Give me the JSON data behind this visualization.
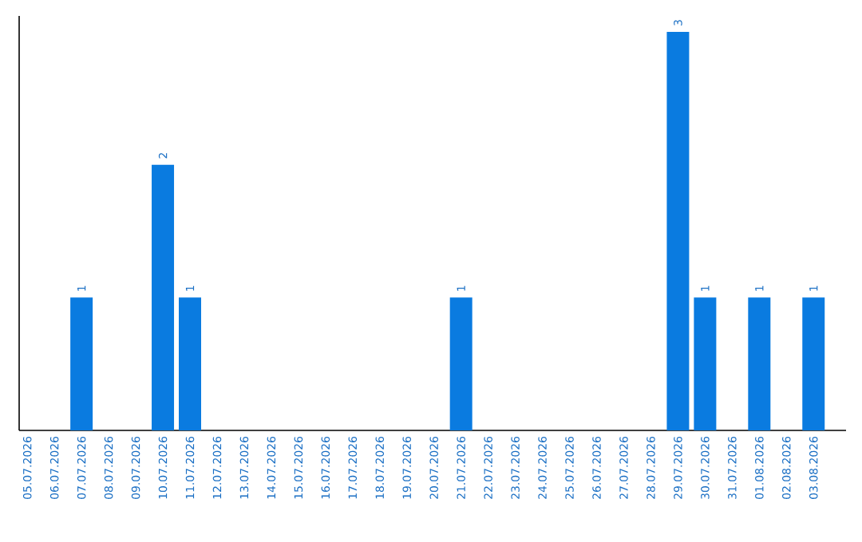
{
  "chart_data": {
    "type": "bar",
    "categories": [
      "05.07.2026",
      "06.07.2026",
      "07.07.2026",
      "08.07.2026",
      "09.07.2026",
      "10.07.2026",
      "11.07.2026",
      "12.07.2026",
      "13.07.2026",
      "14.07.2026",
      "15.07.2026",
      "16.07.2026",
      "17.07.2026",
      "18.07.2026",
      "19.07.2026",
      "20.07.2026",
      "21.07.2026",
      "22.07.2026",
      "23.07.2026",
      "24.07.2026",
      "25.07.2026",
      "26.07.2026",
      "27.07.2026",
      "28.07.2026",
      "29.07.2026",
      "30.07.2026",
      "31.07.2026",
      "01.08.2026",
      "02.08.2026",
      "03.08.2026"
    ],
    "values": [
      null,
      null,
      1,
      null,
      null,
      2,
      1,
      null,
      null,
      null,
      null,
      null,
      null,
      null,
      null,
      null,
      1,
      null,
      null,
      null,
      null,
      null,
      null,
      null,
      3,
      1,
      null,
      1,
      null,
      1
    ],
    "color": "#0a7be0",
    "data_labels": true
  }
}
